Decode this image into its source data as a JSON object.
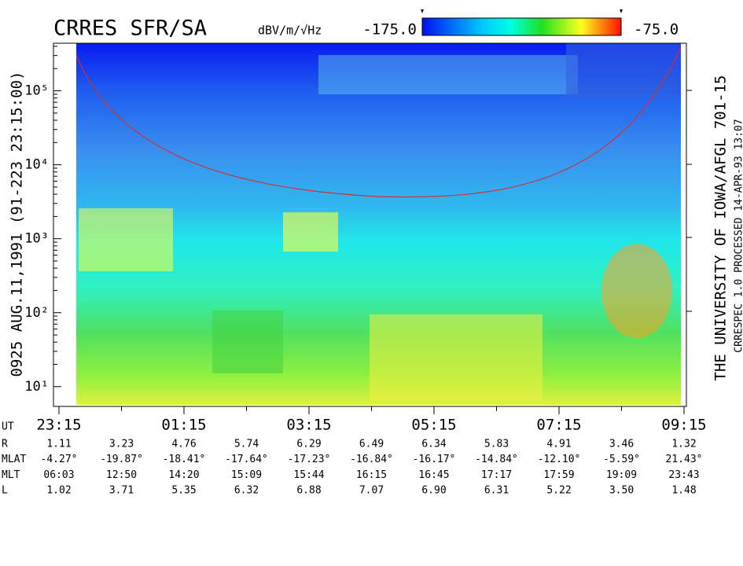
{
  "chart_data": {
    "type": "spectrogram",
    "title": "CRRES SFR/SA",
    "colorbar_label": "dBV/m/√Hz",
    "zlim": [
      {
        "value": -175,
        "label": "-175.0"
      },
      {
        "value": -75,
        "label": "-75.0"
      }
    ],
    "y_label": "0925   AUG.11,1991   (91-223 23:15:00)",
    "right_label": "THE UNIVERSITY OF IOWA/AFGL 701-15",
    "right_sublabel": "CRRESPEC 1.0   PROCESSED 14-APR-93  13:07",
    "yscale": "log",
    "ylim": [
      5.4,
      440000
    ],
    "yticks": [
      {
        "value": 10,
        "label": "10¹"
      },
      {
        "value": 100,
        "label": "10²"
      },
      {
        "value": 1000,
        "label": "10³"
      },
      {
        "value": 10000,
        "label": "10⁴"
      },
      {
        "value": 100000,
        "label": "10⁵"
      }
    ],
    "categories": [
      "23:15",
      null,
      "01:15",
      null,
      "03:15",
      null,
      "05:15",
      null,
      "07:15",
      null,
      "09:15"
    ],
    "ephemeris": {
      "x_label": "UT",
      "rows": [
        {
          "name": "R",
          "values": [
            "1.11",
            "3.23",
            "4.76",
            "5.74",
            "6.29",
            "6.49",
            "6.34",
            "5.83",
            "4.91",
            "3.46",
            "1.32"
          ]
        },
        {
          "name": "MLAT",
          "values": [
            "-4.27°",
            "-19.87°",
            "-18.41°",
            "-17.64°",
            "-17.23°",
            "-16.84°",
            "-16.17°",
            "-14.84°",
            "-12.10°",
            "-5.59°",
            "21.43°"
          ]
        },
        {
          "name": "MLT",
          "values": [
            "06:03",
            "12:50",
            "14:20",
            "15:09",
            "15:44",
            "16:15",
            "16:45",
            "17:17",
            "17:59",
            "19:09",
            "23:43"
          ]
        },
        {
          "name": "L",
          "values": [
            "1.02",
            "3.71",
            "5.35",
            "6.32",
            "6.88",
            "7.07",
            "6.90",
            "6.31",
            "5.22",
            "3.50",
            "1.48"
          ]
        }
      ]
    }
  }
}
